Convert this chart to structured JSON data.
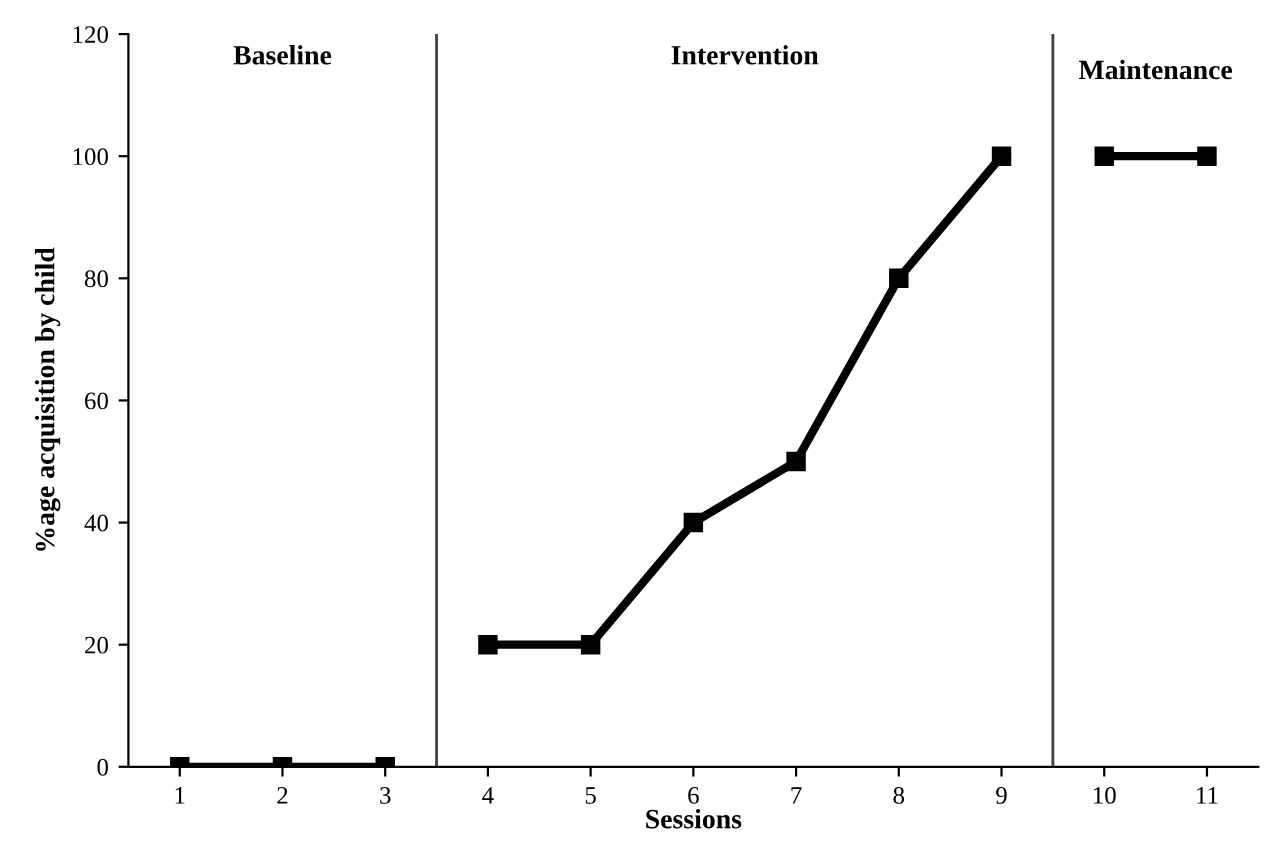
{
  "chart_data": {
    "type": "line",
    "xlabel": "Sessions",
    "ylabel": "%age acquisition by child",
    "series": [
      {
        "color": "#000000",
        "x": [
          1,
          2,
          3
        ],
        "values": [
          0,
          0,
          0
        ]
      },
      {
        "color": "#000000",
        "x": [
          4,
          5,
          6,
          7,
          8,
          9
        ],
        "values": [
          20,
          20,
          40,
          50,
          80,
          100
        ]
      },
      {
        "color": "#000000",
        "x": [
          10,
          11
        ],
        "values": [
          100,
          100
        ]
      }
    ],
    "xlim": [
      0.5,
      11.5
    ],
    "xticks": [
      1,
      2,
      3,
      4,
      5,
      6,
      7,
      8,
      9,
      10,
      11
    ],
    "ylim": [
      0,
      120
    ],
    "yticks": [
      0,
      20,
      40,
      60,
      80,
      100,
      120
    ],
    "ref_lines": [
      {
        "axis": "x",
        "value": 3.5,
        "color": "#404040"
      },
      {
        "axis": "x",
        "value": 9.5,
        "color": "#404040"
      }
    ],
    "annotations": [
      "Baseline",
      "Intervention",
      "Maintenance"
    ],
    "marker": "square",
    "line_style": "solid",
    "grid": false,
    "legend": false
  }
}
